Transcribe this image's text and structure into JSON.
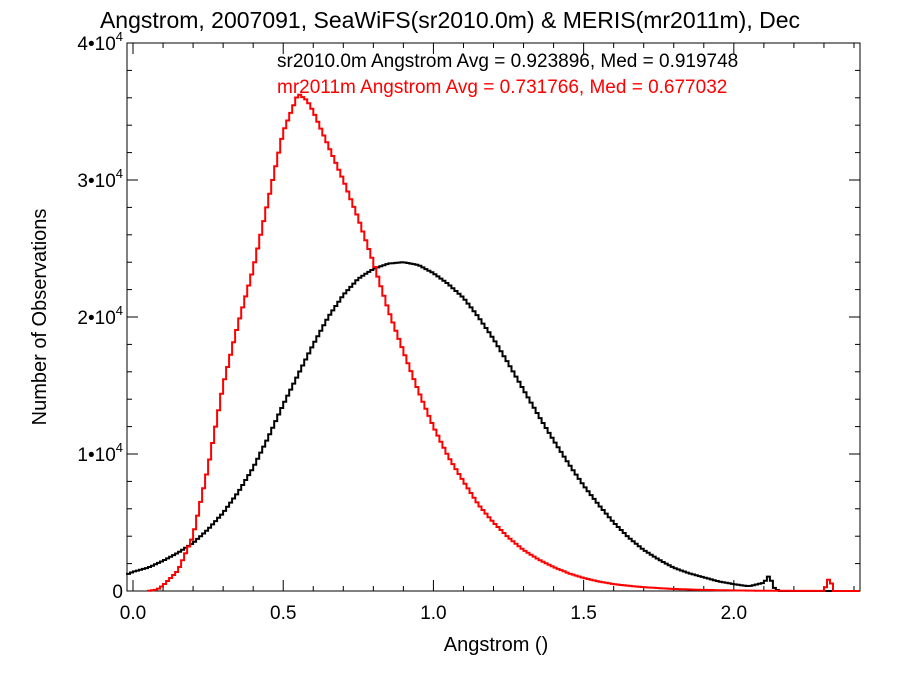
{
  "chart_data": {
    "type": "step-histogram",
    "title": "Angstrom, 2007091, SeaWiFS(sr2010.0m) & MERIS(mr2011m), Dec",
    "xlabel": "Angstrom ()",
    "ylabel": "Number of Observations",
    "xlim": [
      -0.02,
      2.42
    ],
    "ylim": [
      0,
      40000
    ],
    "x_ticks": [
      {
        "value": 0.0,
        "label": "0.0"
      },
      {
        "value": 0.5,
        "label": "0.5"
      },
      {
        "value": 1.0,
        "label": "1.0"
      },
      {
        "value": 1.5,
        "label": "1.5"
      },
      {
        "value": 2.0,
        "label": "2.0"
      }
    ],
    "y_ticks": [
      {
        "value": 0,
        "mantissa": "0",
        "exponent": ""
      },
      {
        "value": 10000,
        "mantissa": "1•10",
        "exponent": "4"
      },
      {
        "value": 20000,
        "mantissa": "2•10",
        "exponent": "4"
      },
      {
        "value": 30000,
        "mantissa": "3•10",
        "exponent": "4"
      },
      {
        "value": 40000,
        "mantissa": "4•10",
        "exponent": "4"
      }
    ],
    "annotations": [
      {
        "text": "sr2010.0m Angstrom Avg = 0.923896, Med = 0.919748",
        "color": "#000000"
      },
      {
        "text": "mr2011m Angstrom Avg = 0.731766, Med = 0.677032",
        "color": "#ff0000"
      }
    ],
    "series": [
      {
        "name": "sr2010.0m",
        "color": "#000000",
        "x": [
          -0.02,
          0.0,
          0.05,
          0.1,
          0.15,
          0.2,
          0.25,
          0.3,
          0.35,
          0.4,
          0.45,
          0.5,
          0.55,
          0.6,
          0.65,
          0.7,
          0.75,
          0.8,
          0.85,
          0.9,
          0.95,
          1.0,
          1.05,
          1.1,
          1.15,
          1.2,
          1.25,
          1.3,
          1.35,
          1.4,
          1.45,
          1.5,
          1.55,
          1.6,
          1.65,
          1.7,
          1.75,
          1.8,
          1.85,
          1.9,
          1.95,
          2.0,
          2.05,
          2.1,
          2.12,
          2.13,
          2.14,
          2.15
        ],
        "y": [
          1200,
          1400,
          1700,
          2200,
          2800,
          3500,
          4500,
          5700,
          7200,
          9000,
          11200,
          13600,
          15800,
          18000,
          20000,
          21600,
          22800,
          23500,
          23900,
          24000,
          23800,
          23200,
          22400,
          21400,
          20000,
          18400,
          16600,
          14700,
          12800,
          11000,
          9300,
          7700,
          6300,
          5000,
          3900,
          3000,
          2300,
          1700,
          1300,
          1000,
          700,
          500,
          350,
          600,
          1200,
          300,
          150,
          0
        ]
      },
      {
        "name": "mr2011m",
        "color": "#ff0000",
        "x": [
          0.05,
          0.08,
          0.1,
          0.15,
          0.2,
          0.25,
          0.3,
          0.35,
          0.4,
          0.45,
          0.5,
          0.55,
          0.58,
          0.6,
          0.65,
          0.7,
          0.75,
          0.8,
          0.85,
          0.9,
          0.95,
          1.0,
          1.05,
          1.1,
          1.15,
          1.2,
          1.25,
          1.3,
          1.35,
          1.4,
          1.45,
          1.5,
          1.55,
          1.6,
          1.65,
          1.7,
          1.75,
          1.8,
          1.85,
          1.9,
          2.0,
          2.1,
          2.2,
          2.3,
          2.32,
          2.33,
          2.34,
          2.35
        ],
        "y": [
          0,
          100,
          400,
          1500,
          4000,
          9000,
          15000,
          19500,
          23500,
          28500,
          33500,
          36300,
          35800,
          35000,
          32500,
          30000,
          27200,
          24000,
          20500,
          17500,
          14600,
          12000,
          9800,
          8000,
          6300,
          5000,
          3900,
          3000,
          2300,
          1750,
          1300,
          950,
          700,
          500,
          380,
          280,
          210,
          150,
          110,
          80,
          40,
          20,
          10,
          5,
          1100,
          0,
          0,
          0
        ]
      }
    ]
  }
}
